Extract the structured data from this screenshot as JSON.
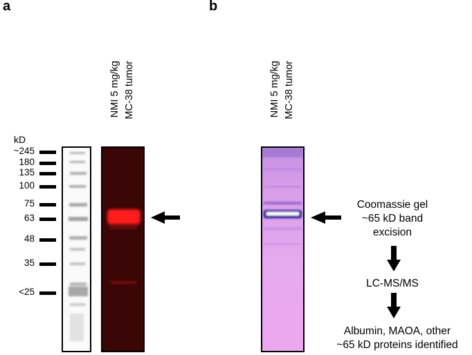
{
  "panels": {
    "a": "a",
    "b": "b"
  },
  "ladder": {
    "unit": "kD",
    "markers": [
      "~245",
      "180",
      "135",
      "100",
      "75",
      "63",
      "48",
      "35",
      "<25"
    ]
  },
  "lane_labels": {
    "line1": "NMI 5 mg/kg",
    "line2": "MC-38 tumor"
  },
  "flow": {
    "step1": [
      "Coomassie gel",
      "~65 kD band",
      "excision"
    ],
    "step2": "LC-MS/MS",
    "step3": [
      "Albumin, MAOA, other",
      "~65 kD proteins identified"
    ]
  },
  "colors": {
    "fluorescence_bg": "#3a0505",
    "fluorescence_band": "#ff1a1a",
    "coomassie_bg": "#e7a6f0",
    "coomassie_band": "#2a1a9a"
  }
}
